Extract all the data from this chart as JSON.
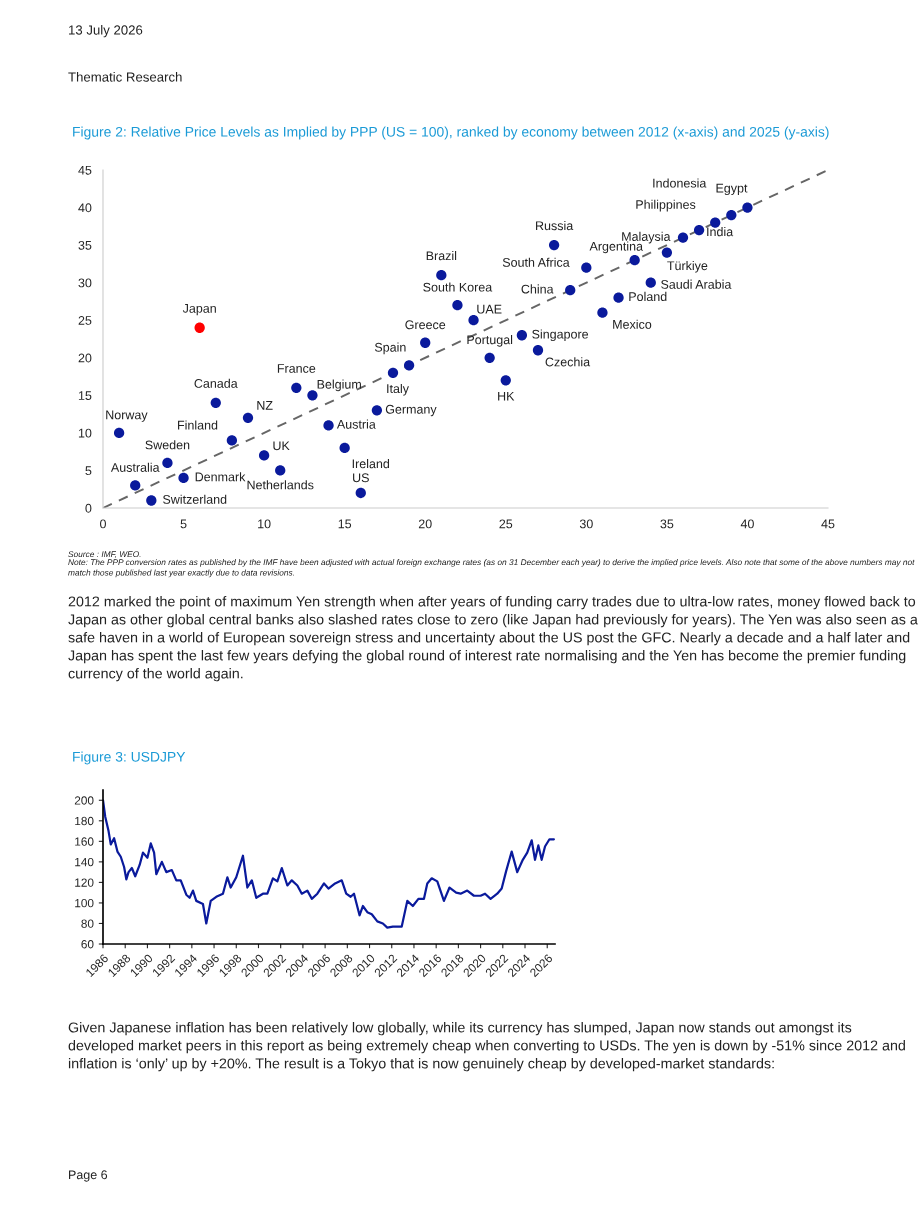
{
  "chart_data": [
    {
      "type": "scatter",
      "title": "Figure 2: Relative Price Levels as Implied by PPP (US = 100), ranked by economy between 2012 (x-axis) and 2025 (y-axis)",
      "series": [
        {
          "type": "scatter",
          "marker": "circle",
          "x": [
            1,
            2,
            3,
            4,
            5,
            6,
            7,
            8,
            9,
            10,
            11,
            12,
            13,
            14,
            15,
            16,
            17,
            18,
            19,
            20,
            21,
            22,
            23,
            24,
            25,
            26,
            27,
            28,
            29,
            30,
            31,
            32,
            33,
            34,
            35,
            36,
            37,
            38,
            39,
            40
          ],
          "values": [
            10,
            3,
            1,
            6,
            4,
            24,
            14,
            9,
            12,
            7,
            5,
            16,
            15,
            11,
            8,
            2,
            13,
            18,
            19,
            22,
            31,
            27,
            25,
            20,
            17,
            23,
            21,
            35,
            29,
            32,
            26,
            28,
            33,
            30,
            34,
            36,
            37,
            38,
            39,
            40
          ],
          "colors": [
            "#0a1a9c",
            "#0a1a9c",
            "#0a1a9c",
            "#0a1a9c",
            "#0a1a9c",
            "#ff0000",
            "#0a1a9c",
            "#0a1a9c",
            "#0a1a9c",
            "#0a1a9c",
            "#0a1a9c",
            "#0a1a9c",
            "#0a1a9c",
            "#0a1a9c",
            "#0a1a9c",
            "#0a1a9c",
            "#0a1a9c",
            "#0a1a9c",
            "#0a1a9c",
            "#0a1a9c",
            "#0a1a9c",
            "#0a1a9c",
            "#0a1a9c",
            "#0a1a9c",
            "#0a1a9c",
            "#0a1a9c",
            "#0a1a9c",
            "#0a1a9c",
            "#0a1a9c",
            "#0a1a9c",
            "#0a1a9c",
            "#0a1a9c",
            "#0a1a9c",
            "#0a1a9c",
            "#0a1a9c",
            "#0a1a9c",
            "#0a1a9c",
            "#0a1a9c",
            "#0a1a9c",
            "#0a1a9c"
          ]
        },
        {
          "type": "line",
          "x": [
            0,
            45
          ],
          "values": [
            0,
            45
          ],
          "color": "#666666",
          "line_style": "dashed",
          "marker": "none"
        }
      ],
      "xlim": [
        0,
        45
      ],
      "ylim": [
        0,
        45
      ],
      "xticks": [
        0,
        5,
        10,
        15,
        20,
        25,
        30,
        35,
        40,
        45
      ],
      "yticks": [
        0,
        5,
        10,
        15,
        20,
        25,
        30,
        35,
        40,
        45
      ],
      "annotations": [
        "13 July 2026",
        "Thematic Research",
        "Source : IMF, WEO.",
        "Note: The PPP conversion rates as published by the IMF have been adjusted with actual foreign exchange rates (as on 31 December each year) to derive the implied price levels. Also note that some of the above numbers may not match those published last year exactly due to data revisions.",
        "2012 marked the point of maximum Yen strength when after years of funding carry trades due to ultra-low rates, money flowed back to Japan as other global central banks also slashed rates close to zero (like Japan had previously for years). The Yen was also seen as a safe haven in a world of European sovereign stress and uncertainty about the US post the GFC. Nearly a decade and a half later and Japan has spent the last few years defying the global round of interest rate normalising and the Yen has become the premier funding currency of the world again.",
        {
          "text": "Norway",
          "x": 1,
          "y": 10
        },
        {
          "text": "Australia",
          "x": 2,
          "y": 3
        },
        {
          "text": "Switzerland",
          "x": 3,
          "y": 1
        },
        {
          "text": "Sweden",
          "x": 4,
          "y": 6
        },
        {
          "text": "Denmark",
          "x": 5,
          "y": 4
        },
        {
          "text": "Japan",
          "x": 6,
          "y": 24
        },
        {
          "text": "Canada",
          "x": 7,
          "y": 14
        },
        {
          "text": "Finland",
          "x": 8,
          "y": 9
        },
        {
          "text": "NZ",
          "x": 9,
          "y": 12
        },
        {
          "text": "UK",
          "x": 10,
          "y": 7
        },
        {
          "text": "Netherlands",
          "x": 11,
          "y": 5
        },
        {
          "text": "France",
          "x": 12,
          "y": 16
        },
        {
          "text": "Belgium",
          "x": 13,
          "y": 15
        },
        {
          "text": "Austria",
          "x": 14,
          "y": 11
        },
        {
          "text": "Ireland",
          "x": 15,
          "y": 8
        },
        {
          "text": "US",
          "x": 16,
          "y": 2
        },
        {
          "text": "Germany",
          "x": 17,
          "y": 13
        },
        {
          "text": "Italy",
          "x": 18,
          "y": 18
        },
        {
          "text": "Spain",
          "x": 19,
          "y": 19
        },
        {
          "text": "Greece",
          "x": 20,
          "y": 22
        },
        {
          "text": "Brazil",
          "x": 21,
          "y": 31
        },
        {
          "text": "South Korea",
          "x": 22,
          "y": 27
        },
        {
          "text": "UAE",
          "x": 23,
          "y": 25
        },
        {
          "text": "Portugal",
          "x": 24,
          "y": 20
        },
        {
          "text": "HK",
          "x": 25,
          "y": 17
        },
        {
          "text": "Singapore",
          "x": 26,
          "y": 23
        },
        {
          "text": "Czechia",
          "x": 27,
          "y": 21
        },
        {
          "text": "Russia",
          "x": 28,
          "y": 35
        },
        {
          "text": "China",
          "x": 29,
          "y": 29
        },
        {
          "text": "South Africa",
          "x": 30,
          "y": 32
        },
        {
          "text": "Mexico",
          "x": 31,
          "y": 26
        },
        {
          "text": "Poland",
          "x": 32,
          "y": 28
        },
        {
          "text": "Argentina",
          "x": 33,
          "y": 33
        },
        {
          "text": "Saudi Arabia",
          "x": 34,
          "y": 30
        },
        {
          "text": "Türkiye",
          "x": 35,
          "y": 34
        },
        {
          "text": "Malaysia",
          "x": 36,
          "y": 36
        },
        {
          "text": "India",
          "x": 37,
          "y": 37
        },
        {
          "text": "Philippines",
          "x": 38,
          "y": 38
        },
        {
          "text": "Indonesia",
          "x": 39,
          "y": 39
        },
        {
          "text": "Egypt",
          "x": 40,
          "y": 40
        }
      ]
    },
    {
      "type": "line",
      "title": "Figure 3: USDJPY",
      "color": "#0a1a9c",
      "x": [
        1986.0,
        1986.2,
        1986.5,
        1986.7,
        1987.0,
        1987.3,
        1987.6,
        1987.9,
        1988.1,
        1988.3,
        1988.6,
        1988.9,
        1989.3,
        1989.6,
        1990.0,
        1990.3,
        1990.6,
        1990.8,
        1991.3,
        1991.7,
        1992.2,
        1992.6,
        1993.0,
        1993.5,
        1993.8,
        1994.1,
        1994.4,
        1995.0,
        1995.3,
        1995.7,
        1996.2,
        1996.8,
        1997.2,
        1997.5,
        1998.0,
        1998.6,
        1999.0,
        1999.4,
        1999.8,
        2000.4,
        2000.8,
        2001.3,
        2001.7,
        2002.1,
        2002.6,
        2003.0,
        2003.5,
        2003.9,
        2004.4,
        2004.8,
        2005.3,
        2005.9,
        2006.3,
        2006.9,
        2007.5,
        2007.9,
        2008.3,
        2008.6,
        2009.1,
        2009.4,
        2009.8,
        2010.2,
        2010.7,
        2011.2,
        2011.6,
        2012.1,
        2012.5,
        2012.9,
        2013.4,
        2013.9,
        2014.4,
        2014.9,
        2015.2,
        2015.6,
        2016.1,
        2016.7,
        2017.2,
        2017.8,
        2018.2,
        2018.8,
        2019.4,
        2020.0,
        2020.4,
        2020.9,
        2021.5,
        2021.9,
        2022.3,
        2022.8,
        2023.3,
        2023.8,
        2024.2,
        2024.6,
        2024.9,
        2025.2,
        2025.5,
        2025.8,
        2026.2,
        2026.6
      ],
      "values": [
        200,
        184,
        170,
        157,
        163,
        150,
        145,
        135,
        123,
        130,
        134,
        126,
        137,
        149,
        144,
        158,
        149,
        128,
        140,
        130,
        132,
        122,
        122,
        108,
        105,
        112,
        102,
        99,
        80,
        102,
        106,
        109,
        125,
        115,
        125,
        146,
        115,
        122,
        105,
        109,
        109,
        124,
        121,
        134,
        117,
        122,
        117,
        109,
        112,
        104,
        109,
        119,
        114,
        119,
        122,
        109,
        106,
        109,
        88,
        97,
        91,
        89,
        82,
        80,
        76,
        77,
        77,
        77,
        102,
        97,
        104,
        104,
        119,
        124,
        121,
        102,
        115,
        110,
        109,
        112,
        107,
        107,
        109,
        104,
        109,
        114,
        131,
        150,
        130,
        142,
        149,
        161,
        142,
        156,
        142,
        155,
        162,
        162
      ],
      "xlim": [
        1986,
        2026.7
      ],
      "ylim": [
        60,
        210
      ],
      "xticks": [
        1986,
        1988,
        1990,
        1992,
        1994,
        1996,
        1998,
        2000,
        2002,
        2004,
        2006,
        2008,
        2010,
        2012,
        2014,
        2016,
        2018,
        2020,
        2022,
        2024,
        2026
      ],
      "yticks": [
        60,
        80,
        100,
        120,
        140,
        160,
        180,
        200
      ],
      "annotations": [
        "Given Japanese inflation has been relatively low globally, while its currency has slumped, Japan now stands out amongst its developed market peers in this report as being extremely cheap when converting to USDs. The yen is down by -51% since 2012 and inflation is ‘only’ up by +20%. The result is a Tokyo that is now genuinely cheap by developed-market standards:",
        "Page 6"
      ]
    }
  ]
}
